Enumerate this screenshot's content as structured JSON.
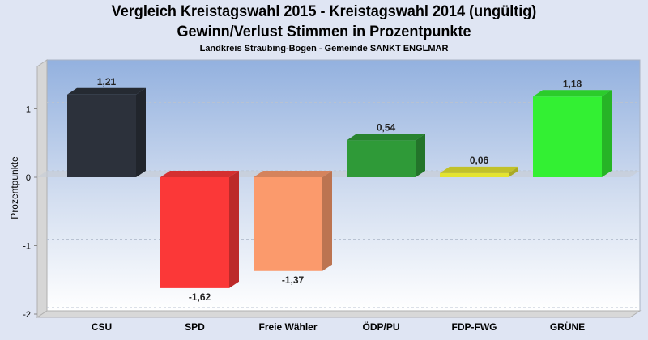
{
  "chart_data": {
    "type": "bar",
    "title": "Vergleich Kreistagswahl 2015 - Kreistagswahl 2014 (ungültig)",
    "subtitle": "Gewinn/Verlust Stimmen in Prozentpunkte",
    "caption": "Landkreis Straubing-Bogen - Gemeinde SANKT ENGLMAR",
    "xlabel": "",
    "ylabel": "Prozentpunkte",
    "ylim": [
      -2,
      1.6
    ],
    "yticks": [
      1,
      0,
      -1,
      -2
    ],
    "ytick_labels": [
      "1",
      "0",
      "-1",
      "-2"
    ],
    "grid": true,
    "categories": [
      "CSU",
      "SPD",
      "Freie Wähler",
      "ÖDP/PU",
      "FDP-FWG",
      "GRÜNE"
    ],
    "values": [
      1.21,
      -1.62,
      -1.37,
      0.54,
      0.06,
      1.18
    ],
    "value_labels": [
      "1,21",
      "-1,62",
      "-1,37",
      "0,54",
      "0,06",
      "1,18"
    ],
    "colors": [
      "#2c313b",
      "#fb3838",
      "#fb9a6c",
      "#2f9a38",
      "#e3e330",
      "#33f033"
    ]
  }
}
